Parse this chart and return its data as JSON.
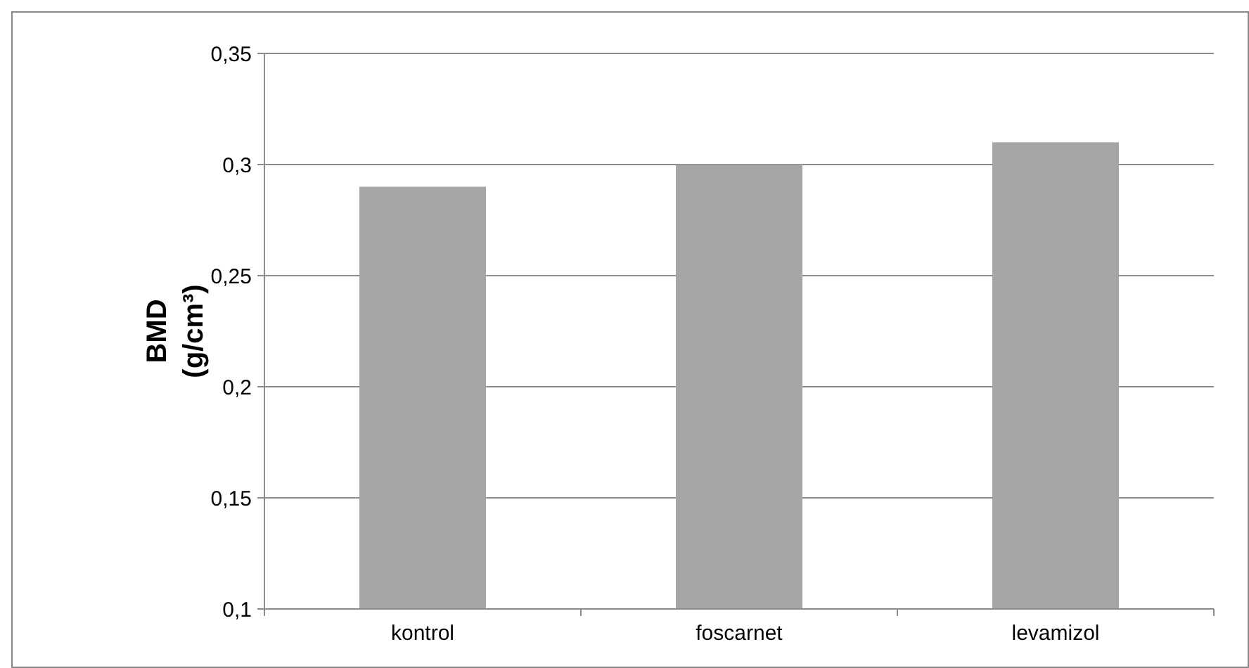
{
  "chart_data": {
    "type": "bar",
    "ylabel": "BMD\n(g/cm³)",
    "categories": [
      "kontrol",
      "foscarnet",
      "levamizol"
    ],
    "values": [
      0.29,
      0.3,
      0.31
    ],
    "color": "#a6a6a6",
    "ylim": [
      0.1,
      0.35
    ],
    "yticks": [
      {
        "value": 0.1,
        "label": "0,1"
      },
      {
        "value": 0.15,
        "label": "0,15"
      },
      {
        "value": 0.2,
        "label": "0,2"
      },
      {
        "value": 0.25,
        "label": "0,25"
      },
      {
        "value": 0.3,
        "label": "0,3"
      },
      {
        "value": 0.35,
        "label": "0,35"
      }
    ],
    "grid": "y"
  }
}
